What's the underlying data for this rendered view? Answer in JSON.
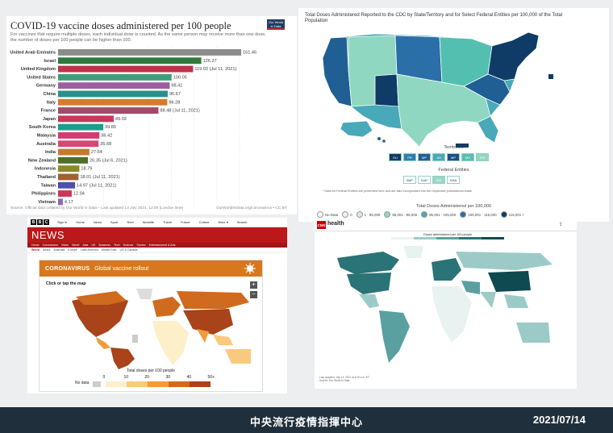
{
  "footer": {
    "center": "中央流行疫情指揮中心",
    "date": "2021/07/14"
  },
  "owid": {
    "title": "COVID-19 vaccine doses administered per 100 people",
    "subtitle": "For vaccines that require multiple doses, each individual dose is counted. As the same person may receive more than one dose, the number of doses per 100 people can be higher than 100.",
    "logo": [
      "Our World",
      "in Data"
    ],
    "source": "Source: Official data collated by Our World in Data – Last updated 13 July 2021, 12:00 (London time)",
    "link": "OurWorldInData.org/coronavirus • CC BY"
  },
  "chart_data": [
    {
      "type": "bar",
      "orientation": "horizontal",
      "title": "COVID-19 vaccine doses administered per 100 people",
      "categories": [
        "United Arab Emirates",
        "Israel",
        "United Kingdom",
        "United States",
        "Germany",
        "China",
        "Italy",
        "France",
        "Japan",
        "South Korea",
        "Malaysia",
        "Australia",
        "India",
        "New Zealand",
        "Indonesia",
        "Thailand",
        "Taiwan",
        "Philippines",
        "Vietnam"
      ],
      "values": [
        161.46,
        126.27,
        119.02,
        100.05,
        98.41,
        96.67,
        96.28,
        88.48,
        49.02,
        39.85,
        36.42,
        35.68,
        27.64,
        26.35,
        18.79,
        18.01,
        14.97,
        12.04,
        4.17
      ],
      "value_labels": [
        "161.46",
        "126.27",
        "119.02 (Jul 11, 2021)",
        "100.05",
        "98.41",
        "96.67",
        "96.28",
        "88.48 (Jul 11, 2021)",
        "49.02",
        "39.85",
        "36.42",
        "35.68",
        "27.64",
        "26.35 (Jul 6, 2021)",
        "18.79",
        "18.01 (Jul 11, 2021)",
        "14.97 (Jul 11, 2021)",
        "12.04",
        "4.17"
      ],
      "colors": [
        "#8c8c8c",
        "#2f7a3a",
        "#c0314a",
        "#3f9e7a",
        "#9d5fa0",
        "#2a8f8f",
        "#d57a2f",
        "#a24a6a",
        "#c8385a",
        "#1a9e8e",
        "#d63a73",
        "#d24a73",
        "#c47a30",
        "#4d6f2a",
        "#8a8a2a",
        "#a06030",
        "#4f4fb0",
        "#c8385a",
        "#9065b0"
      ],
      "xlim": [
        0,
        160
      ],
      "xticks": [
        "0",
        "20",
        "40",
        "60",
        "80",
        "100",
        "120",
        "140",
        "160"
      ]
    }
  ],
  "cdc": {
    "title": "Total Doses Administered Reported to the CDC by State/Territory and for Select Federal Entities per 100,000 of the Total Population",
    "territories_title": "Territories",
    "territories": [
      {
        "label": "GU",
        "color": "#0e3c66"
      },
      {
        "label": "PR",
        "color": "#2e7eb0"
      },
      {
        "label": "MP",
        "color": "#1f5f93"
      },
      {
        "label": "AS",
        "color": "#48a9b8"
      },
      {
        "label": "MP",
        "color": "#1a4f86"
      },
      {
        "label": "MH",
        "color": "#53bfb0"
      },
      {
        "label": "FM",
        "color": "#8fd7c0"
      }
    ],
    "federal_title": "Federal Entities",
    "federal": [
      {
        "label": "BoP",
        "color": "#ffffff"
      },
      {
        "label": "DoD",
        "color": "#ffffff"
      },
      {
        "label": "IHS",
        "color": "#9ad8c6"
      },
      {
        "label": "VHA",
        "color": "#ffffff"
      }
    ],
    "note": "* Data for Federal Entities are presented here and are also incorporated into the respective jurisdictional totals",
    "range_title": "Total Doses Administered per 100,000",
    "ranges": [
      {
        "label": "No Data",
        "color": "#ffffff"
      },
      {
        "label": "0",
        "color": "#f0f0f0"
      },
      {
        "label": "1 - 85,000",
        "color": "#d4efe0"
      },
      {
        "label": "85,001 - 95,000",
        "color": "#8fd7c0"
      },
      {
        "label": "95,001 - 105,000",
        "color": "#48a9b8"
      },
      {
        "label": "105,001 - 115,000",
        "color": "#2a6fa8"
      },
      {
        "label": "115,001 +",
        "color": "#0e3c66"
      }
    ]
  },
  "bbc": {
    "logo": [
      "B",
      "B",
      "C"
    ],
    "nav": [
      "Sign in",
      "Home",
      "News",
      "Sport",
      "Reel",
      "Worklife",
      "Travel",
      "Future",
      "Culture",
      "More ▾",
      "Search"
    ],
    "news": "NEWS",
    "sections": [
      "Home",
      "Coronavirus",
      "Video",
      "World",
      "Asia",
      "UK",
      "Business",
      "Tech",
      "Science",
      "Stories",
      "Entertainment & Arts"
    ],
    "subsections": [
      "World",
      "Africa",
      "Australia",
      "Europe",
      "Latin America",
      "Middle East",
      "US & Canada"
    ],
    "banner_label": "CORONAVIRUS",
    "banner_title": "Global vaccine rollout",
    "click": "Click or tap the map",
    "zoom_in": "+",
    "zoom_out": "−",
    "legend_title": "Total doses per 100 people",
    "no_data": "No data",
    "legend_ticks": [
      "0",
      "10",
      "20",
      "30",
      "40",
      "50+"
    ],
    "legend_colors": [
      "#fdf0c8",
      "#f9c97e",
      "#f29b3a",
      "#d06a1e",
      "#a8431a"
    ]
  },
  "cnn": {
    "logo": "CNN",
    "health": "health",
    "share": "⇪",
    "legend_title": "Doses administered per 100 people",
    "legend_colors": [
      "#e8f3f1",
      "#9ccbc7",
      "#5aa0a0",
      "#2a7376",
      "#0e4a4f"
    ],
    "date": [
      "Last updated: July 14, 2021 at 5:29 a.m. ET",
      "Source: Our World in Data"
    ]
  },
  "map_colors": {
    "cdc_land": "#48a9b8",
    "bbc_land": "#f29b3a",
    "cnn_land": "#9ccbc7",
    "cnn_dark": "#2a7376"
  }
}
